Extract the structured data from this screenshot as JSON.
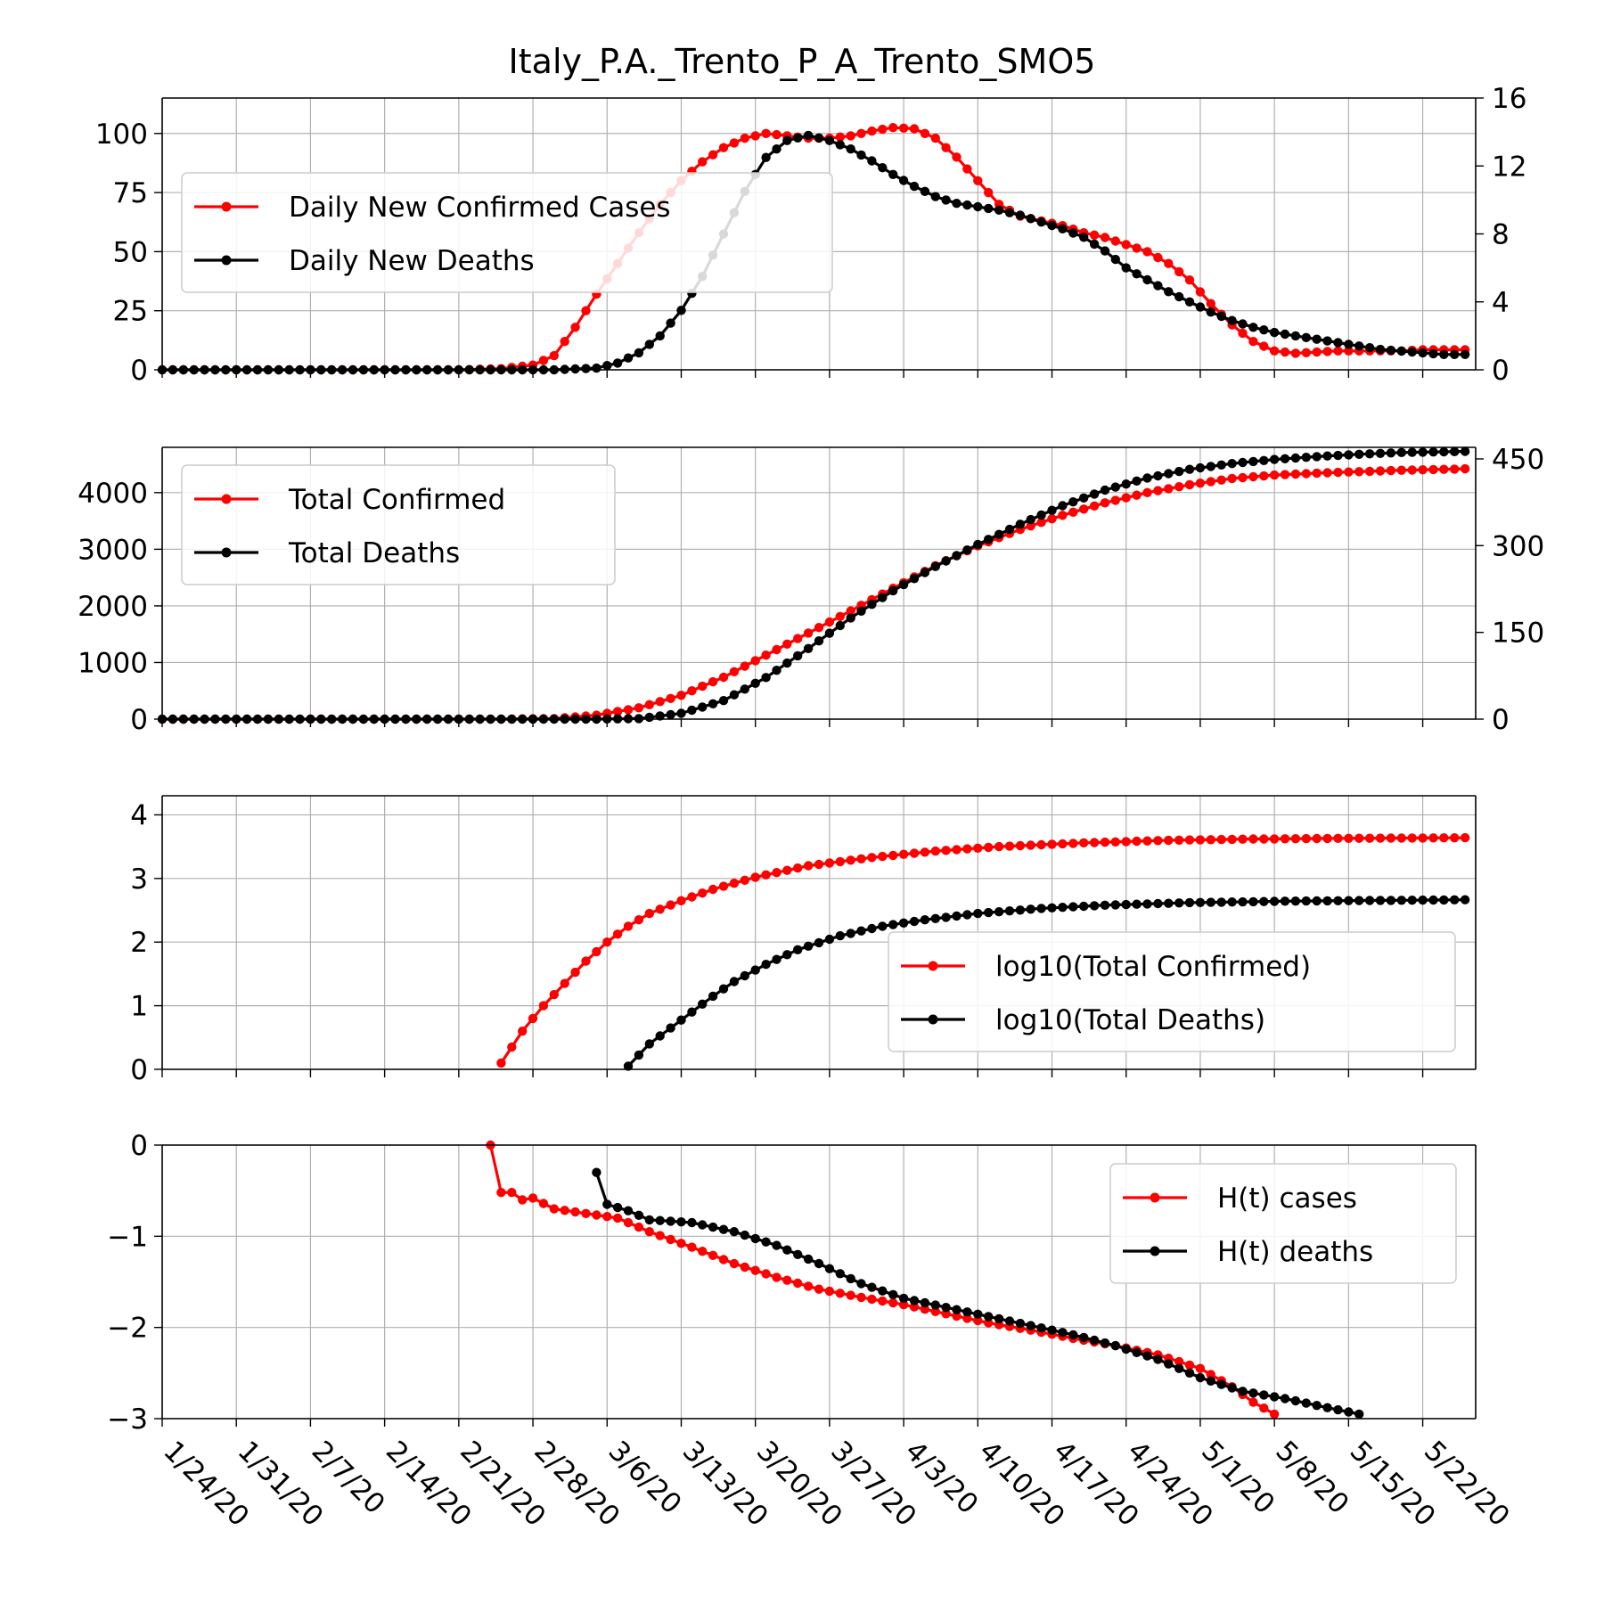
{
  "page_title": "Italy_P.A._Trento_P_A_Trento_SMO5",
  "colors": {
    "cases": "#ff0000",
    "deaths": "#000000",
    "grid": "#b0b0b0"
  },
  "x_tick_labels": [
    "1/24/20",
    "1/31/20",
    "2/7/20",
    "2/14/20",
    "2/21/20",
    "2/28/20",
    "3/6/20",
    "3/13/20",
    "3/20/20",
    "3/27/20",
    "4/3/20",
    "4/10/20",
    "4/17/20",
    "4/24/20",
    "5/1/20",
    "5/8/20",
    "5/15/20",
    "5/22/20"
  ],
  "chart_data": [
    {
      "type": "line",
      "panel": "daily",
      "x_axis": "date",
      "x_range": [
        "1/24/20",
        "5/27/20"
      ],
      "left_ylim": [
        0,
        115
      ],
      "left_yticks": [
        0,
        25,
        50,
        75,
        100
      ],
      "right_ylim": [
        0,
        16
      ],
      "right_yticks": [
        0,
        4,
        8,
        12,
        16
      ],
      "grid": true,
      "legend_position": "upper-left",
      "series": [
        {
          "name": "Daily New Confirmed Cases",
          "axis": "left",
          "color": "#ff0000",
          "points": [
            [
              "1/24/20",
              0
            ],
            [
              "2/21/20",
              0
            ],
            [
              "2/25/20",
              0.5
            ],
            [
              "2/28/20",
              2
            ],
            [
              "3/1/20",
              6
            ],
            [
              "3/3/20",
              18
            ],
            [
              "3/5/20",
              32
            ],
            [
              "3/7/20",
              45
            ],
            [
              "3/9/20",
              58
            ],
            [
              "3/11/20",
              70
            ],
            [
              "3/13/20",
              80
            ],
            [
              "3/15/20",
              88
            ],
            [
              "3/17/20",
              94
            ],
            [
              "3/19/20",
              98
            ],
            [
              "3/21/20",
              100
            ],
            [
              "3/23/20",
              99
            ],
            [
              "3/25/20",
              98
            ],
            [
              "3/27/20",
              98
            ],
            [
              "3/29/20",
              99
            ],
            [
              "3/31/20",
              101
            ],
            [
              "4/2/20",
              102.5
            ],
            [
              "4/4/20",
              102
            ],
            [
              "4/6/20",
              98
            ],
            [
              "4/8/20",
              90
            ],
            [
              "4/10/20",
              80
            ],
            [
              "4/12/20",
              70
            ],
            [
              "4/14/20",
              65
            ],
            [
              "4/16/20",
              63
            ],
            [
              "4/18/20",
              61
            ],
            [
              "4/20/20",
              58
            ],
            [
              "4/22/20",
              56
            ],
            [
              "4/24/20",
              53
            ],
            [
              "4/26/20",
              50
            ],
            [
              "4/28/20",
              45
            ],
            [
              "4/30/20",
              38
            ],
            [
              "5/2/20",
              28
            ],
            [
              "5/4/20",
              19
            ],
            [
              "5/6/20",
              12
            ],
            [
              "5/8/20",
              8
            ],
            [
              "5/10/20",
              7
            ],
            [
              "5/12/20",
              7.5
            ],
            [
              "5/14/20",
              8
            ],
            [
              "5/16/20",
              8
            ],
            [
              "5/18/20",
              8
            ],
            [
              "5/20/20",
              8
            ],
            [
              "5/22/20",
              8.5
            ],
            [
              "5/24/20",
              8.5
            ],
            [
              "5/26/20",
              8.5
            ]
          ]
        },
        {
          "name": "Daily New Deaths",
          "axis": "right",
          "color": "#000000",
          "points": [
            [
              "1/24/20",
              0
            ],
            [
              "3/1/20",
              0
            ],
            [
              "3/5/20",
              0.1
            ],
            [
              "3/7/20",
              0.4
            ],
            [
              "3/9/20",
              1
            ],
            [
              "3/11/20",
              2
            ],
            [
              "3/13/20",
              3.5
            ],
            [
              "3/15/20",
              5.5
            ],
            [
              "3/17/20",
              8
            ],
            [
              "3/19/20",
              10.5
            ],
            [
              "3/21/20",
              12.5
            ],
            [
              "3/23/20",
              13.5
            ],
            [
              "3/25/20",
              13.8
            ],
            [
              "3/27/20",
              13.5
            ],
            [
              "3/29/20",
              13
            ],
            [
              "3/31/20",
              12.3
            ],
            [
              "4/2/20",
              11.5
            ],
            [
              "4/4/20",
              10.8
            ],
            [
              "4/6/20",
              10.2
            ],
            [
              "4/8/20",
              9.8
            ],
            [
              "4/10/20",
              9.6
            ],
            [
              "4/12/20",
              9.4
            ],
            [
              "4/14/20",
              9.1
            ],
            [
              "4/16/20",
              8.7
            ],
            [
              "4/18/20",
              8.3
            ],
            [
              "4/20/20",
              7.8
            ],
            [
              "4/22/20",
              7
            ],
            [
              "4/24/20",
              6
            ],
            [
              "4/26/20",
              5.3
            ],
            [
              "4/28/20",
              4.6
            ],
            [
              "4/30/20",
              4
            ],
            [
              "5/2/20",
              3.4
            ],
            [
              "5/4/20",
              2.9
            ],
            [
              "5/6/20",
              2.5
            ],
            [
              "5/8/20",
              2.2
            ],
            [
              "5/10/20",
              2
            ],
            [
              "5/12/20",
              1.8
            ],
            [
              "5/14/20",
              1.6
            ],
            [
              "5/16/20",
              1.4
            ],
            [
              "5/18/20",
              1.2
            ],
            [
              "5/20/20",
              1.1
            ],
            [
              "5/22/20",
              1
            ],
            [
              "5/24/20",
              0.9
            ],
            [
              "5/26/20",
              0.9
            ]
          ]
        }
      ]
    },
    {
      "type": "line",
      "panel": "totals",
      "x_axis": "date",
      "x_range": [
        "1/24/20",
        "5/27/20"
      ],
      "left_ylim": [
        0,
        4800
      ],
      "left_yticks": [
        0,
        1000,
        2000,
        3000,
        4000
      ],
      "right_ylim": [
        0,
        470
      ],
      "right_yticks": [
        0,
        150,
        300,
        450
      ],
      "grid": true,
      "legend_position": "upper-left",
      "series": [
        {
          "name": "Total Confirmed",
          "axis": "left",
          "color": "#ff0000",
          "points": [
            [
              "1/24/20",
              0
            ],
            [
              "2/25/20",
              0
            ],
            [
              "3/1/20",
              10
            ],
            [
              "3/5/20",
              70
            ],
            [
              "3/9/20",
              200
            ],
            [
              "3/13/20",
              420
            ],
            [
              "3/17/20",
              740
            ],
            [
              "3/21/20",
              1130
            ],
            [
              "3/25/20",
              1520
            ],
            [
              "3/29/20",
              1910
            ],
            [
              "4/2/20",
              2310
            ],
            [
              "4/6/20",
              2710
            ],
            [
              "4/10/20",
              3060
            ],
            [
              "4/14/20",
              3350
            ],
            [
              "4/18/20",
              3600
            ],
            [
              "4/22/20",
              3820
            ],
            [
              "4/26/20",
              4000
            ],
            [
              "4/30/20",
              4140
            ],
            [
              "5/4/20",
              4250
            ],
            [
              "5/8/20",
              4310
            ],
            [
              "5/12/20",
              4345
            ],
            [
              "5/16/20",
              4370
            ],
            [
              "5/20/20",
              4395
            ],
            [
              "5/26/20",
              4420
            ]
          ]
        },
        {
          "name": "Total Deaths",
          "axis": "right",
          "color": "#000000",
          "points": [
            [
              "1/24/20",
              0
            ],
            [
              "3/5/20",
              0
            ],
            [
              "3/9/20",
              1
            ],
            [
              "3/13/20",
              10
            ],
            [
              "3/17/20",
              32
            ],
            [
              "3/21/20",
              72
            ],
            [
              "3/25/20",
              122
            ],
            [
              "3/29/20",
              175
            ],
            [
              "4/2/20",
              222
            ],
            [
              "4/6/20",
              264
            ],
            [
              "4/10/20",
              302
            ],
            [
              "4/14/20",
              337
            ],
            [
              "4/18/20",
              369
            ],
            [
              "4/22/20",
              396
            ],
            [
              "4/26/20",
              417
            ],
            [
              "4/30/20",
              432
            ],
            [
              "5/4/20",
              442
            ],
            [
              "5/8/20",
              449
            ],
            [
              "5/12/20",
              454
            ],
            [
              "5/16/20",
              458
            ],
            [
              "5/20/20",
              461
            ],
            [
              "5/26/20",
              463
            ]
          ]
        }
      ]
    },
    {
      "type": "line",
      "panel": "log",
      "x_axis": "date",
      "x_range": [
        "1/24/20",
        "5/27/20"
      ],
      "ylim": [
        0,
        4.3
      ],
      "yticks": [
        0,
        1,
        2,
        3,
        4
      ],
      "grid": true,
      "legend_position": "lower-right",
      "series": [
        {
          "name": "log10(Total Confirmed)",
          "color": "#ff0000",
          "points": [
            [
              "2/25/20",
              0.1
            ],
            [
              "2/27/20",
              0.6
            ],
            [
              "2/29/20",
              1.0
            ],
            [
              "3/2/20",
              1.35
            ],
            [
              "3/4/20",
              1.7
            ],
            [
              "3/6/20",
              2.0
            ],
            [
              "3/8/20",
              2.25
            ],
            [
              "3/10/20",
              2.45
            ],
            [
              "3/13/20",
              2.65
            ],
            [
              "3/16/20",
              2.83
            ],
            [
              "3/20/20",
              3.02
            ],
            [
              "3/25/20",
              3.2
            ],
            [
              "3/31/20",
              3.33
            ],
            [
              "4/6/20",
              3.43
            ],
            [
              "4/12/20",
              3.5
            ],
            [
              "4/20/20",
              3.56
            ],
            [
              "4/28/20",
              3.6
            ],
            [
              "5/6/20",
              3.62
            ],
            [
              "5/14/20",
              3.63
            ],
            [
              "5/26/20",
              3.64
            ]
          ]
        },
        {
          "name": "log10(Total Deaths)",
          "color": "#000000",
          "points": [
            [
              "3/8/20",
              0.05
            ],
            [
              "3/10/20",
              0.4
            ],
            [
              "3/12/20",
              0.65
            ],
            [
              "3/14/20",
              0.9
            ],
            [
              "3/16/20",
              1.15
            ],
            [
              "3/18/20",
              1.38
            ],
            [
              "3/21/20",
              1.65
            ],
            [
              "3/24/20",
              1.88
            ],
            [
              "3/28/20",
              2.1
            ],
            [
              "4/1/20",
              2.25
            ],
            [
              "4/5/20",
              2.35
            ],
            [
              "4/10/20",
              2.45
            ],
            [
              "4/16/20",
              2.53
            ],
            [
              "4/22/20",
              2.58
            ],
            [
              "4/30/20",
              2.62
            ],
            [
              "5/10/20",
              2.645
            ],
            [
              "5/26/20",
              2.665
            ]
          ]
        }
      ]
    },
    {
      "type": "line",
      "panel": "H(t)",
      "x_axis": "date",
      "x_range": [
        "1/24/20",
        "5/27/20"
      ],
      "ylim": [
        -3,
        0
      ],
      "yticks": [
        -3,
        -2,
        -1,
        0
      ],
      "grid": true,
      "legend_position": "upper-right",
      "series": [
        {
          "name": "H(t) cases",
          "color": "#ff0000",
          "points": [
            [
              "2/24/20",
              0
            ],
            [
              "2/25/20",
              -0.52
            ],
            [
              "2/26/20",
              -0.52
            ],
            [
              "2/27/20",
              -0.6
            ],
            [
              "2/28/20",
              -0.58
            ],
            [
              "3/1/20",
              -0.7
            ],
            [
              "3/4/20",
              -0.75
            ],
            [
              "3/7/20",
              -0.8
            ],
            [
              "3/10/20",
              -0.95
            ],
            [
              "3/14/20",
              -1.12
            ],
            [
              "3/18/20",
              -1.3
            ],
            [
              "3/22/20",
              -1.45
            ],
            [
              "3/26/20",
              -1.58
            ],
            [
              "3/30/20",
              -1.67
            ],
            [
              "4/3/20",
              -1.75
            ],
            [
              "4/7/20",
              -1.85
            ],
            [
              "4/11/20",
              -1.95
            ],
            [
              "4/15/20",
              -2.03
            ],
            [
              "4/19/20",
              -2.12
            ],
            [
              "4/23/20",
              -2.2
            ],
            [
              "4/27/20",
              -2.3
            ],
            [
              "5/1/20",
              -2.45
            ],
            [
              "5/4/20",
              -2.65
            ],
            [
              "5/6/20",
              -2.82
            ],
            [
              "5/8/20",
              -2.95
            ]
          ]
        },
        {
          "name": "H(t) deaths",
          "color": "#000000",
          "points": [
            [
              "3/5/20",
              -0.3
            ],
            [
              "3/6/20",
              -0.65
            ],
            [
              "3/8/20",
              -0.72
            ],
            [
              "3/10/20",
              -0.82
            ],
            [
              "3/14/20",
              -0.85
            ],
            [
              "3/18/20",
              -0.95
            ],
            [
              "3/22/20",
              -1.1
            ],
            [
              "3/26/20",
              -1.3
            ],
            [
              "3/30/20",
              -1.52
            ],
            [
              "4/3/20",
              -1.68
            ],
            [
              "4/7/20",
              -1.78
            ],
            [
              "4/11/20",
              -1.88
            ],
            [
              "4/15/20",
              -1.98
            ],
            [
              "4/19/20",
              -2.08
            ],
            [
              "4/23/20",
              -2.2
            ],
            [
              "4/27/20",
              -2.35
            ],
            [
              "5/1/20",
              -2.55
            ],
            [
              "5/5/20",
              -2.7
            ],
            [
              "5/9/20",
              -2.78
            ],
            [
              "5/13/20",
              -2.88
            ],
            [
              "5/16/20",
              -2.95
            ]
          ]
        }
      ]
    }
  ]
}
